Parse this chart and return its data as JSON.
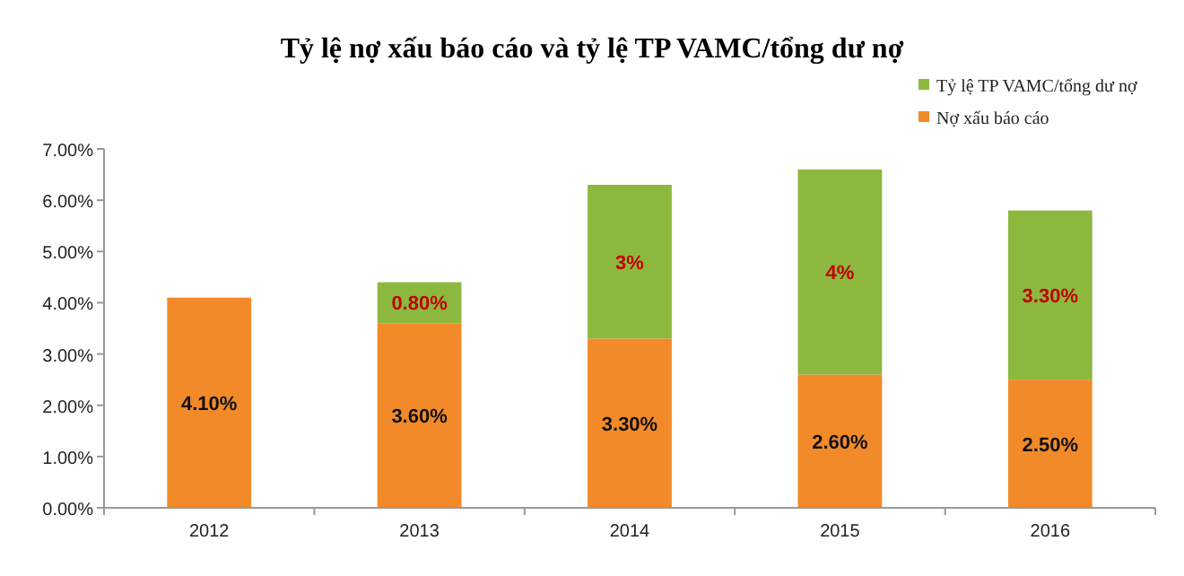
{
  "chart_data": {
    "type": "bar",
    "title": "Tỷ lệ nợ xấu báo cáo và tỷ lệ TP VAMC/tổng dư nợ",
    "categories": [
      "2012",
      "2013",
      "2014",
      "2015",
      "2016"
    ],
    "stacked": true,
    "legend": "top right",
    "series": [
      {
        "name": "Nợ xấu báo cáo",
        "color": "#f28a2a",
        "values": [
          4.1,
          3.6,
          3.3,
          2.6,
          2.5
        ],
        "value_labels": [
          "4.10%",
          "3.60%",
          "3.30%",
          "2.60%",
          "2.50%"
        ]
      },
      {
        "name": "Tỷ lệ TP VAMC/tổng dư nợ",
        "color": "#8cb83e",
        "values": [
          null,
          0.8,
          3,
          4,
          3.3
        ],
        "value_labels": [
          null,
          "0.80%",
          "3%",
          "4%",
          "3.30%"
        ]
      }
    ],
    "ylim": [
      0,
      7
    ],
    "yticks": [
      {
        "value": 0,
        "label": "0.00%"
      },
      {
        "value": 1,
        "label": "1.00%"
      },
      {
        "value": 2,
        "label": "2.00%"
      },
      {
        "value": 3,
        "label": "3.00%"
      },
      {
        "value": 4,
        "label": "4.00%"
      },
      {
        "value": 5,
        "label": "5.00%"
      },
      {
        "value": 6,
        "label": "6.00%"
      },
      {
        "value": 7,
        "label": "7.00%"
      }
    ]
  }
}
